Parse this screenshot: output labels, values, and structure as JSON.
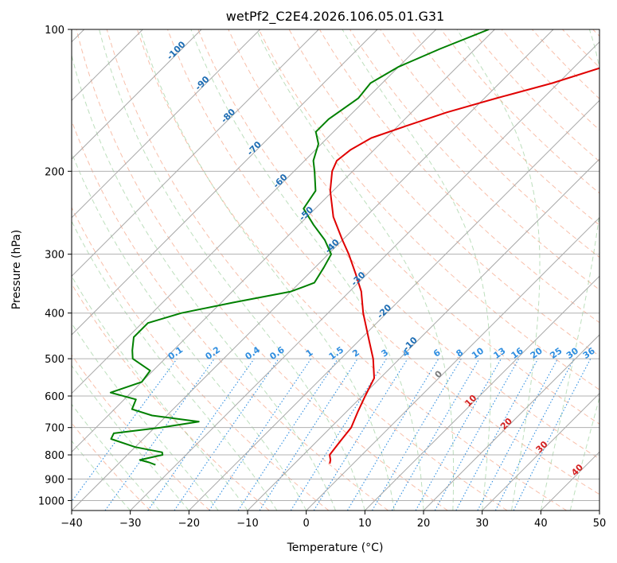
{
  "chart_data": {
    "type": "line",
    "title": "wetPf2_C2E4.2026.106.05.01.G31",
    "xlabel": "Temperature (°C)",
    "ylabel": "Pressure (hPa)",
    "xlim": [
      -40,
      50
    ],
    "ylim": [
      1050,
      100
    ],
    "y_scale": "log",
    "grid": true,
    "x_ticks": [
      -40,
      -30,
      -20,
      -10,
      0,
      10,
      20,
      30,
      40,
      50
    ],
    "x_tick_labels": [
      "−40",
      "−30",
      "−20",
      "−10",
      "0",
      "10",
      "20",
      "30",
      "40",
      "50"
    ],
    "y_ticks": [
      100,
      200,
      300,
      400,
      500,
      600,
      700,
      800,
      900,
      1000
    ],
    "y_tick_labels": [
      "100",
      "200",
      "300",
      "400",
      "500",
      "600",
      "700",
      "800",
      "900",
      "1000"
    ],
    "skew_isotherm_labels": [
      {
        "value": -100,
        "text": "-100"
      },
      {
        "value": -90,
        "text": "-90"
      },
      {
        "value": -80,
        "text": "-80"
      },
      {
        "value": -70,
        "text": "-70"
      },
      {
        "value": -60,
        "text": "-60"
      },
      {
        "value": -50,
        "text": "-50"
      },
      {
        "value": -40,
        "text": "-40"
      },
      {
        "value": -30,
        "text": "-30"
      },
      {
        "value": -20,
        "text": "-20"
      },
      {
        "value": -10,
        "text": "-10"
      },
      {
        "value": 0,
        "text": "0"
      },
      {
        "value": 10,
        "text": "10"
      },
      {
        "value": 20,
        "text": "20"
      },
      {
        "value": 30,
        "text": "30"
      },
      {
        "value": 40,
        "text": "40"
      }
    ],
    "mixing_ratio_labels": [
      "0.1",
      "0.2",
      "0.4",
      "0.6",
      "1",
      "1.5",
      "2",
      "3",
      "4",
      "6",
      "8",
      "10",
      "13",
      "16",
      "20",
      "25",
      "30",
      "36"
    ],
    "series": [
      {
        "color": "#e00000",
        "points": [
          [
            103,
            -20.5
          ],
          [
            115,
            -22
          ],
          [
            120,
            -25
          ],
          [
            130,
            -31
          ],
          [
            140,
            -38
          ],
          [
            150,
            -44
          ],
          [
            160,
            -48.5
          ],
          [
            170,
            -52.5
          ],
          [
            180,
            -54
          ],
          [
            190,
            -54.5
          ],
          [
            200,
            -53.5
          ],
          [
            220,
            -50.5
          ],
          [
            250,
            -45.5
          ],
          [
            280,
            -40
          ],
          [
            300,
            -36.5
          ],
          [
            330,
            -32
          ],
          [
            360,
            -28
          ],
          [
            400,
            -24
          ],
          [
            450,
            -19
          ],
          [
            500,
            -14.5
          ],
          [
            550,
            -11
          ],
          [
            600,
            -9.5
          ],
          [
            650,
            -8
          ],
          [
            700,
            -6.5
          ],
          [
            750,
            -6
          ],
          [
            800,
            -5.5
          ],
          [
            820,
            -4.5
          ],
          [
            835,
            -4
          ]
        ]
      },
      {
        "color": "#008000",
        "points": [
          [
            100,
            -51
          ],
          [
            110,
            -56
          ],
          [
            120,
            -60
          ],
          [
            130,
            -62
          ],
          [
            140,
            -61.5
          ],
          [
            155,
            -63
          ],
          [
            165,
            -63
          ],
          [
            175,
            -60.5
          ],
          [
            190,
            -58.5
          ],
          [
            200,
            -56.5
          ],
          [
            220,
            -53
          ],
          [
            240,
            -52
          ],
          [
            260,
            -47.5
          ],
          [
            280,
            -43
          ],
          [
            300,
            -39.5
          ],
          [
            320,
            -38.5
          ],
          [
            345,
            -37.5
          ],
          [
            360,
            -40
          ],
          [
            380,
            -48
          ],
          [
            400,
            -55
          ],
          [
            420,
            -59
          ],
          [
            450,
            -59
          ],
          [
            480,
            -57
          ],
          [
            500,
            -55.5
          ],
          [
            530,
            -50.5
          ],
          [
            560,
            -50
          ],
          [
            590,
            -53.5
          ],
          [
            610,
            -48
          ],
          [
            640,
            -47
          ],
          [
            660,
            -42.5
          ],
          [
            680,
            -33.5
          ],
          [
            700,
            -39
          ],
          [
            720,
            -46
          ],
          [
            740,
            -45.5
          ],
          [
            770,
            -40
          ],
          [
            790,
            -34.5
          ],
          [
            800,
            -34
          ],
          [
            820,
            -37
          ],
          [
            830,
            -35
          ],
          [
            840,
            -33.5
          ]
        ]
      }
    ]
  }
}
